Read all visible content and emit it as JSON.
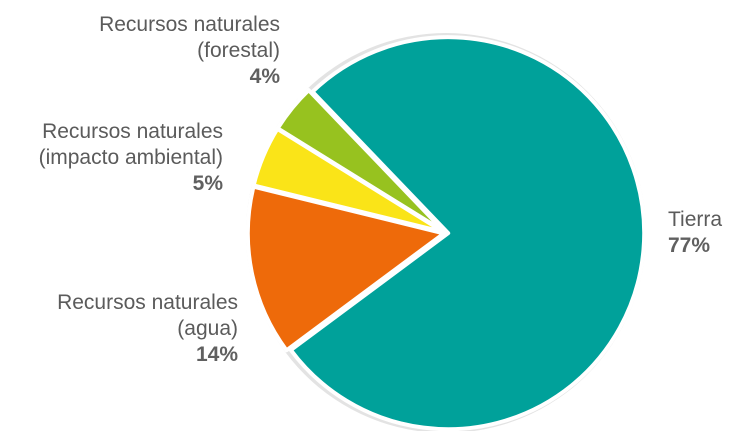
{
  "chart_data": {
    "type": "pie",
    "slices": [
      {
        "label_lines": [
          "Tierra"
        ],
        "value": 77,
        "pct_label": "77%",
        "color": "#00A19A"
      },
      {
        "label_lines": [
          "Recursos naturales",
          "(agua)"
        ],
        "value": 14,
        "pct_label": "14%",
        "color": "#EE6A0A"
      },
      {
        "label_lines": [
          "Recursos naturales",
          "(impacto ambiental)"
        ],
        "value": 5,
        "pct_label": "5%",
        "color": "#FAE418"
      },
      {
        "label_lines": [
          "Recursos naturales",
          "(forestal)"
        ],
        "value": 4,
        "pct_label": "4%",
        "color": "#97C21F"
      }
    ],
    "ring_color": "#E3E3E3"
  }
}
